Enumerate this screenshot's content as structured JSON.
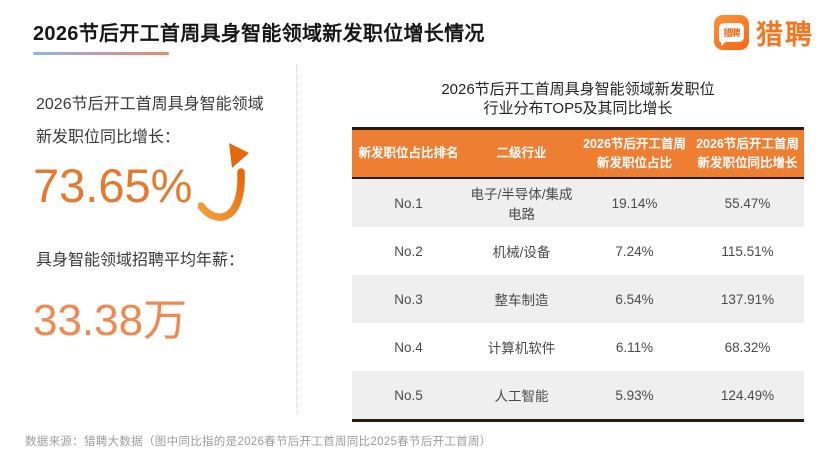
{
  "header": {
    "title": "2026节后开工首周具身智能领域新发职位增长情况",
    "logo": {
      "brand": "猎聘",
      "icon_text": "猎聘"
    }
  },
  "left_panel": {
    "growth_label_line1": "2026节后开工首周具身智能领域",
    "growth_label_line2": "新发职位同比增长：",
    "growth_value": "73.65%",
    "salary_label": "具身智能领域招聘平均年薪：",
    "salary_value": "33.38万"
  },
  "table_panel": {
    "title_line1": "2026节后开工首周具身智能领域新发职位",
    "title_line2": "行业分布TOP5及其同比增长",
    "columns": [
      "新发职位占比排名",
      "二级行业",
      "2026节后开工首周\n新发职位占比",
      "2026节后开工首周\n新发职位同比增长"
    ],
    "rows": [
      [
        "No.1",
        "电子/半导体/集成电路",
        "19.14%",
        "55.47%"
      ],
      [
        "No.2",
        "机械/设备",
        "7.24%",
        "115.51%"
      ],
      [
        "No.3",
        "整车制造",
        "6.54%",
        "137.91%"
      ],
      [
        "No.4",
        "计算机软件",
        "6.11%",
        "68.32%"
      ],
      [
        "No.5",
        "人工智能",
        "5.93%",
        "124.49%"
      ]
    ]
  },
  "footer": {
    "source": "数据来源：猎聘大数据（图中同比指的是2026春节后开工首周同比2025春节后开工首周）"
  },
  "colors": {
    "brand_orange": "#F4771F",
    "table_header_orange": "#EE7E32",
    "growth_value_orange": "#E8792C",
    "salary_value_orange": "#EE8A50",
    "row_alt_gray": "#EFEFEF",
    "dark_border": "#2B1B0E"
  },
  "chart_data": {
    "type": "table",
    "title": "2026节后开工首周具身智能领域新发职位行业分布TOP5及其同比增长",
    "columns": [
      "新发职位占比排名",
      "二级行业",
      "2026节后开工首周新发职位占比",
      "2026节后开工首周新发职位同比增长"
    ],
    "rows": [
      [
        "No.1",
        "电子/半导体/集成电路",
        "19.14%",
        "55.47%"
      ],
      [
        "No.2",
        "机械/设备",
        "7.24%",
        "115.51%"
      ],
      [
        "No.3",
        "整车制造",
        "6.54%",
        "137.91%"
      ],
      [
        "No.4",
        "计算机软件",
        "6.11%",
        "68.32%"
      ],
      [
        "No.5",
        "人工智能",
        "5.93%",
        "124.49%"
      ]
    ],
    "key_stats": [
      {
        "label": "2026节后开工首周具身智能领域新发职位同比增长",
        "value": "73.65%"
      },
      {
        "label": "具身智能领域招聘平均年薪",
        "value": "33.38万"
      }
    ],
    "source_note": "数据来源：猎聘大数据（图中同比指的是2026春节后开工首周同比2025春节后开工首周）"
  }
}
